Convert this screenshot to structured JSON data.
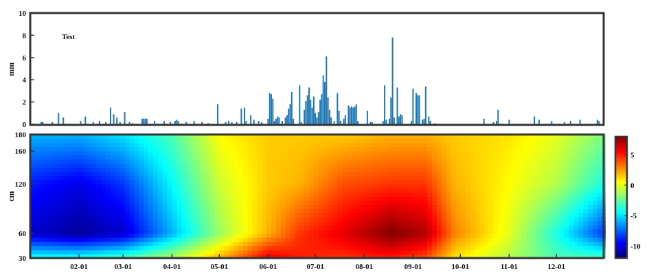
{
  "chart_data": [
    {
      "type": "bar",
      "panel": "precipitation",
      "annotation": "Test",
      "ylabel": "mm",
      "ylim": [
        0,
        10
      ],
      "yticks": [
        0,
        2,
        4,
        6,
        8,
        10
      ],
      "x_unit": "day of year",
      "xlim": [
        1,
        365
      ],
      "bar_color": "#1f77b4",
      "values": [
        [
          8,
          0.2
        ],
        [
          9,
          0.2
        ],
        [
          15,
          0.2
        ],
        [
          19,
          1.0
        ],
        [
          22,
          0.6
        ],
        [
          33,
          0.3
        ],
        [
          36,
          0.7
        ],
        [
          41,
          0.2
        ],
        [
          45,
          0.3
        ],
        [
          49,
          0.2
        ],
        [
          52,
          1.5
        ],
        [
          54,
          0.9
        ],
        [
          56,
          0.6
        ],
        [
          58,
          0.2
        ],
        [
          61,
          1.1
        ],
        [
          64,
          0.2
        ],
        [
          66,
          0.1
        ],
        [
          72,
          0.5
        ],
        [
          73,
          0.5
        ],
        [
          74,
          0.5
        ],
        [
          75,
          0.5
        ],
        [
          80,
          0.3
        ],
        [
          86,
          0.3
        ],
        [
          90,
          0.2
        ],
        [
          93,
          0.3
        ],
        [
          94,
          0.4
        ],
        [
          95,
          0.3
        ],
        [
          100,
          0.2
        ],
        [
          105,
          0.3
        ],
        [
          110,
          0.2
        ],
        [
          114,
          0.1
        ],
        [
          120,
          1.8
        ],
        [
          125,
          0.2
        ],
        [
          127,
          0.3
        ],
        [
          129,
          0.2
        ],
        [
          132,
          0.2
        ],
        [
          135,
          1.4
        ],
        [
          137,
          1.5
        ],
        [
          138,
          0.3
        ],
        [
          141,
          0.8
        ],
        [
          143,
          0.4
        ],
        [
          146,
          0.3
        ],
        [
          148,
          0.2
        ],
        [
          152,
          0.5
        ],
        [
          153,
          2.8
        ],
        [
          154,
          2.7
        ],
        [
          155,
          2.3
        ],
        [
          156,
          0.3
        ],
        [
          157,
          0.5
        ],
        [
          158,
          0.7
        ],
        [
          159,
          0.6
        ],
        [
          161,
          0.3
        ],
        [
          163,
          0.6
        ],
        [
          164,
          0.8
        ],
        [
          165,
          1.4
        ],
        [
          166,
          1.8
        ],
        [
          167,
          2.9
        ],
        [
          168,
          0.5
        ],
        [
          172,
          3.5
        ],
        [
          173,
          0.2
        ],
        [
          175,
          1.3
        ],
        [
          176,
          2.1
        ],
        [
          177,
          2.6
        ],
        [
          178,
          3.3
        ],
        [
          179,
          2.2
        ],
        [
          180,
          1.5
        ],
        [
          181,
          2.5
        ],
        [
          182,
          1.0
        ],
        [
          183,
          0.6
        ],
        [
          184,
          1.1
        ],
        [
          185,
          2.2
        ],
        [
          186,
          2.7
        ],
        [
          187,
          4.4
        ],
        [
          188,
          3.8
        ],
        [
          189,
          6.1
        ],
        [
          190,
          2.4
        ],
        [
          191,
          1.3
        ],
        [
          192,
          0.6
        ],
        [
          194,
          0.3
        ],
        [
          196,
          2.8
        ],
        [
          197,
          1.2
        ],
        [
          198,
          0.3
        ],
        [
          200,
          0.5
        ],
        [
          201,
          0.8
        ],
        [
          203,
          1.7
        ],
        [
          204,
          1.5
        ],
        [
          205,
          1.6
        ],
        [
          206,
          1.5
        ],
        [
          207,
          1.6
        ],
        [
          208,
          1.8
        ],
        [
          209,
          0.3
        ],
        [
          215,
          1.2
        ],
        [
          217,
          0.2
        ],
        [
          218,
          0.2
        ],
        [
          225,
          0.3
        ],
        [
          226,
          3.5
        ],
        [
          227,
          0.4
        ],
        [
          229,
          0.5
        ],
        [
          230,
          2.4
        ],
        [
          231,
          7.8
        ],
        [
          232,
          0.6
        ],
        [
          234,
          3.3
        ],
        [
          235,
          0.7
        ],
        [
          236,
          0.9
        ],
        [
          237,
          0.8
        ],
        [
          243,
          0.3
        ],
        [
          244,
          3.2
        ],
        [
          246,
          2.8
        ],
        [
          247,
          2.6
        ],
        [
          248,
          2.6
        ],
        [
          250,
          0.4
        ],
        [
          251,
          0.5
        ],
        [
          252,
          3.4
        ],
        [
          254,
          0.7
        ],
        [
          255,
          0.3
        ],
        [
          258,
          0.1
        ],
        [
          289,
          0.5
        ],
        [
          295,
          0.2
        ],
        [
          297,
          0.3
        ],
        [
          298,
          1.3
        ],
        [
          305,
          0.4
        ],
        [
          321,
          0.7
        ],
        [
          324,
          0.4
        ],
        [
          332,
          0.3
        ],
        [
          340,
          0.2
        ],
        [
          344,
          0.3
        ],
        [
          350,
          0.4
        ],
        [
          361,
          0.4
        ],
        [
          362,
          0.3
        ]
      ]
    },
    {
      "type": "heatmap",
      "panel": "soil-temperature-profile",
      "ylabel": "cm",
      "ylim": [
        30,
        180
      ],
      "yticks": [
        30,
        60,
        120,
        160,
        180
      ],
      "x_unit": "day of year",
      "xlim": [
        1,
        365
      ],
      "xticks": [
        {
          "label": "02-01",
          "day": 32
        },
        {
          "label": "03-01",
          "day": 60
        },
        {
          "label": "04-01",
          "day": 91
        },
        {
          "label": "05-01",
          "day": 121
        },
        {
          "label": "06-01",
          "day": 152
        },
        {
          "label": "07-01",
          "day": 182
        },
        {
          "label": "08-01",
          "day": 213
        },
        {
          "label": "09-01",
          "day": 244
        },
        {
          "label": "10-01",
          "day": 274
        },
        {
          "label": "11-01",
          "day": 305
        },
        {
          "label": "12-01",
          "day": 335
        }
      ],
      "colorbar": {
        "range": [
          -12,
          8
        ],
        "ticks": [
          -10,
          -5,
          0,
          5
        ],
        "colormap": "jet",
        "colors": [
          "#00007f",
          "#0000ff",
          "#007fff",
          "#00ffff",
          "#7fff7f",
          "#ffff00",
          "#ff7f00",
          "#ff0000",
          "#7f0000"
        ]
      },
      "value_profile": {
        "depth_levels_cm": [
          180,
          120,
          60,
          30
        ],
        "keyframes": [
          {
            "day": 1,
            "values": [
              -6,
              -9,
              -10.5,
              -4
            ]
          },
          {
            "day": 32,
            "values": [
              -6,
              -10,
              -11.5,
              -4
            ]
          },
          {
            "day": 60,
            "values": [
              -5,
              -8.5,
              -10.5,
              -3
            ]
          },
          {
            "day": 91,
            "values": [
              -3,
              -4.5,
              -6,
              -1
            ]
          },
          {
            "day": 121,
            "values": [
              0.5,
              -0.5,
              -1.5,
              2
            ]
          },
          {
            "day": 152,
            "values": [
              1.5,
              1.5,
              2,
              6
            ]
          },
          {
            "day": 172,
            "values": [
              1.5,
              2,
              4.5,
              5
            ]
          },
          {
            "day": 200,
            "values": [
              1.5,
              4,
              6,
              4.5
            ]
          },
          {
            "day": 230,
            "values": [
              2,
              4.5,
              8,
              5
            ]
          },
          {
            "day": 252,
            "values": [
              2,
              4.5,
              7,
              4
            ]
          },
          {
            "day": 270,
            "values": [
              1.5,
              2,
              3,
              1
            ]
          },
          {
            "day": 305,
            "values": [
              1,
              0.5,
              0,
              -1
            ]
          },
          {
            "day": 335,
            "values": [
              0,
              -1,
              -4,
              -3
            ]
          },
          {
            "day": 365,
            "values": [
              -2,
              -4,
              -8.5,
              -3
            ]
          }
        ]
      }
    }
  ]
}
